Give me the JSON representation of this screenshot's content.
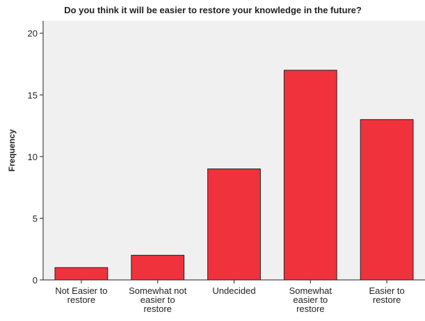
{
  "chart_data": {
    "type": "bar",
    "title": "Do you think it will be easier to restore your knowledge in the future?",
    "y_label": "Frequency",
    "categories": [
      "Not Easier to restore",
      "Somewhat not easier to restore",
      "Undecided",
      "Somewhat easier to restore",
      "Easier to restore"
    ],
    "values": [
      1,
      2,
      9,
      17,
      13
    ],
    "color": "#f0323c",
    "ylim": [
      0,
      21
    ],
    "yticks": [
      0,
      5,
      10,
      15,
      20
    ],
    "grid": false
  }
}
